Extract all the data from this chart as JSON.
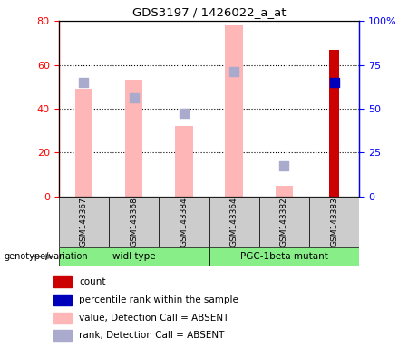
{
  "title": "GDS3197 / 1426022_a_at",
  "samples": [
    "GSM143367",
    "GSM143368",
    "GSM143384",
    "GSM143364",
    "GSM143382",
    "GSM143383"
  ],
  "pink_bars": [
    49,
    53,
    32,
    78,
    5,
    0
  ],
  "blue_squares_left": [
    52,
    45,
    38,
    57,
    14,
    52
  ],
  "red_bars": [
    0,
    0,
    0,
    0,
    0,
    67
  ],
  "ylim_left": [
    0,
    80
  ],
  "ylim_right": [
    0,
    100
  ],
  "yticks_left": [
    0,
    20,
    40,
    60,
    80
  ],
  "yticks_right": [
    0,
    25,
    50,
    75,
    100
  ],
  "ytick_labels_right": [
    "0",
    "25",
    "50",
    "75",
    "100%"
  ],
  "pink_color": "#FFB6B6",
  "blue_color": "#AAAACC",
  "red_color": "#CC0000",
  "dark_blue_color": "#0000BB",
  "bar_width": 0.35,
  "legend_items": [
    {
      "color": "#CC0000",
      "label": "count"
    },
    {
      "color": "#0000BB",
      "label": "percentile rank within the sample"
    },
    {
      "color": "#FFB6B6",
      "label": "value, Detection Call = ABSENT"
    },
    {
      "color": "#AAAACC",
      "label": "rank, Detection Call = ABSENT"
    }
  ],
  "wt_label": "widl type",
  "pgc_label": "PGC-1beta mutant",
  "group_label": "genotype/variation",
  "green_color": "#88EE88",
  "gray_color": "#CCCCCC"
}
